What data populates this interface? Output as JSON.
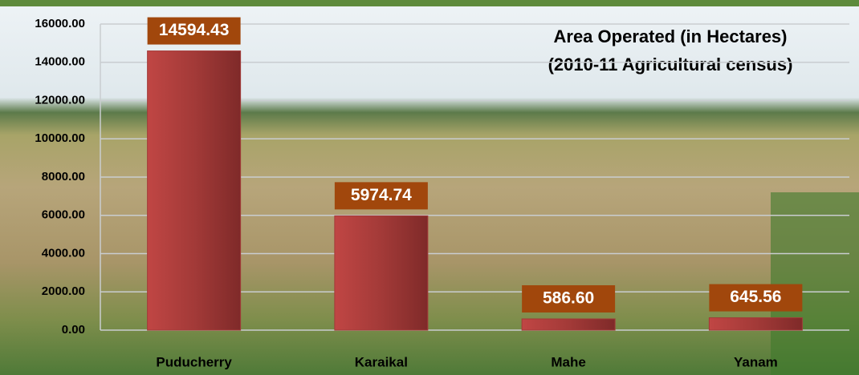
{
  "chart_data": {
    "type": "bar",
    "title": "Area Operated (in Hectares)",
    "subtitle": "(2010-11 Agricultural census)",
    "categories": [
      "Puducherry",
      "Karaikal",
      "Mahe",
      "Yanam"
    ],
    "values": [
      14594.43,
      5974.74,
      586.6,
      645.56
    ],
    "value_labels": [
      "14594.43",
      "5974.74",
      "586.60",
      "645.56"
    ],
    "color": "#a33a38",
    "label_color": "#a1470c",
    "ylim": [
      0,
      16000
    ],
    "yticks": [
      {
        "value": 0,
        "label": "0.00"
      },
      {
        "value": 2000,
        "label": "2000.00"
      },
      {
        "value": 4000,
        "label": "4000.00"
      },
      {
        "value": 6000,
        "label": "6000.00"
      },
      {
        "value": 8000,
        "label": "8000.00"
      },
      {
        "value": 10000,
        "label": "10000.00"
      },
      {
        "value": 12000,
        "label": "12000.00"
      },
      {
        "value": 14000,
        "label": "14000.00"
      },
      {
        "value": 16000,
        "label": "16000.00"
      }
    ],
    "grid": true
  }
}
